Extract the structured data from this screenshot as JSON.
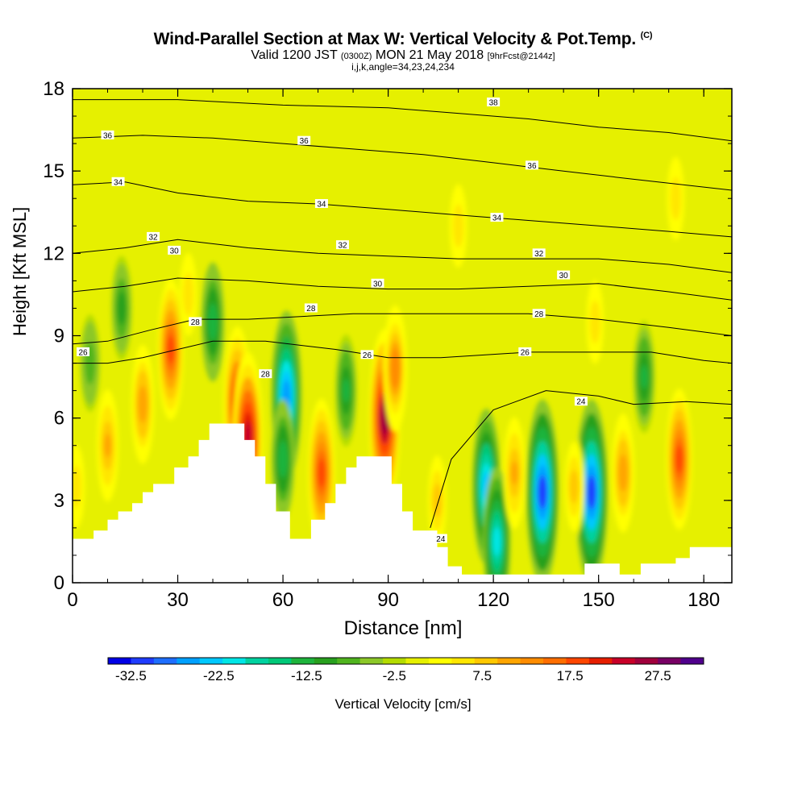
{
  "header": {
    "title_main": "Wind-Parallel Section at Max W: Vertical Velocity & Pot.Temp.",
    "title_mark": "(C)",
    "valid_prefix": "Valid 1200 JST",
    "valid_zulu": "(0300Z)",
    "valid_date": "MON 21 May 2018",
    "forecast_tag": "[9hrFcst@2144z]",
    "indices": "i,j,k,angle=34,23,24,234"
  },
  "colorbar": {
    "label": "Vertical Velocity [cm/s]",
    "tick_labels": [
      "-32.5",
      "-22.5",
      "-12.5",
      "-2.5",
      "7.5",
      "17.5",
      "27.5"
    ],
    "colors": [
      "#0000e6",
      "#1f3cff",
      "#1e6eff",
      "#00a0ff",
      "#00c8ff",
      "#00e6e6",
      "#00d2a0",
      "#00c878",
      "#1eb43c",
      "#28a01e",
      "#50b41e",
      "#8cc828",
      "#b4dc00",
      "#e6f000",
      "#ffff00",
      "#ffe600",
      "#ffc800",
      "#ffa500",
      "#ff8c00",
      "#ff6e00",
      "#ff4600",
      "#e61e00",
      "#c80028",
      "#a0003c",
      "#780064",
      "#50008c"
    ]
  },
  "chart_data": {
    "type": "heatmap",
    "title": "Wind-Parallel Section at Max W: Vertical Velocity & Pot.Temp.",
    "xlabel": "Distance [nm]",
    "ylabel": "Height [Kft MSL]",
    "xlim": [
      0,
      188
    ],
    "ylim": [
      0,
      18
    ],
    "x_ticks": [
      0,
      30,
      60,
      90,
      120,
      150,
      180
    ],
    "y_ticks": [
      0,
      3,
      6,
      9,
      12,
      15,
      18
    ],
    "color_variable": "Vertical Velocity [cm/s]",
    "color_range": [
      -32.5,
      32.5
    ],
    "contour_variable": "Potential Temperature",
    "terrain": [
      [
        0,
        1.6
      ],
      [
        6,
        1.6
      ],
      [
        6,
        1.9
      ],
      [
        10,
        1.9
      ],
      [
        10,
        2.3
      ],
      [
        13,
        2.3
      ],
      [
        13,
        2.6
      ],
      [
        17,
        2.6
      ],
      [
        17,
        2.9
      ],
      [
        20,
        2.9
      ],
      [
        20,
        3.3
      ],
      [
        23,
        3.3
      ],
      [
        23,
        3.6
      ],
      [
        29,
        3.6
      ],
      [
        29,
        4.2
      ],
      [
        33,
        4.2
      ],
      [
        33,
        4.6
      ],
      [
        36,
        4.6
      ],
      [
        36,
        5.2
      ],
      [
        39,
        5.2
      ],
      [
        39,
        5.8
      ],
      [
        49,
        5.8
      ],
      [
        49,
        5.2
      ],
      [
        52,
        5.2
      ],
      [
        52,
        4.6
      ],
      [
        55,
        4.6
      ],
      [
        55,
        3.6
      ],
      [
        58,
        3.6
      ],
      [
        58,
        2.6
      ],
      [
        62,
        2.6
      ],
      [
        62,
        1.6
      ],
      [
        68,
        1.6
      ],
      [
        68,
        2.3
      ],
      [
        72,
        2.3
      ],
      [
        72,
        2.9
      ],
      [
        75,
        2.9
      ],
      [
        75,
        3.6
      ],
      [
        78,
        3.6
      ],
      [
        78,
        4.2
      ],
      [
        81,
        4.2
      ],
      [
        81,
        4.6
      ],
      [
        91,
        4.6
      ],
      [
        91,
        3.6
      ],
      [
        94,
        3.6
      ],
      [
        94,
        2.6
      ],
      [
        97,
        2.6
      ],
      [
        97,
        1.9
      ],
      [
        104,
        1.9
      ],
      [
        104,
        1.3
      ],
      [
        107,
        1.3
      ],
      [
        107,
        0.6
      ],
      [
        111,
        0.6
      ],
      [
        111,
        0.3
      ],
      [
        146,
        0.3
      ],
      [
        146,
        0.7
      ],
      [
        156,
        0.7
      ],
      [
        156,
        0.3
      ],
      [
        162,
        0.3
      ],
      [
        162,
        0.7
      ],
      [
        172,
        0.7
      ],
      [
        172,
        0.9
      ],
      [
        176,
        0.9
      ],
      [
        176,
        1.3
      ],
      [
        188,
        1.3
      ]
    ],
    "updrafts": [
      {
        "x": 1,
        "z": 3.5,
        "w": 8
      },
      {
        "x": 10,
        "z": 5,
        "w": 12
      },
      {
        "x": 20,
        "z": 6.5,
        "w": 14
      },
      {
        "x": 28,
        "z": 8.5,
        "w": 20
      },
      {
        "x": 33,
        "z": 10.5,
        "w": 8
      },
      {
        "x": 47,
        "z": 6.5,
        "w": 24
      },
      {
        "x": 50,
        "z": 5.3,
        "w": 28
      },
      {
        "x": 71,
        "z": 4,
        "w": 22
      },
      {
        "x": 89,
        "z": 6,
        "w": 30
      },
      {
        "x": 92,
        "z": 7.8,
        "w": 16
      },
      {
        "x": 104,
        "z": 3,
        "w": 10
      },
      {
        "x": 126,
        "z": 4,
        "w": 12
      },
      {
        "x": 143,
        "z": 3.5,
        "w": 10
      },
      {
        "x": 149,
        "z": 9.5,
        "w": 8
      },
      {
        "x": 157,
        "z": 4,
        "w": 14
      },
      {
        "x": 173,
        "z": 4.5,
        "w": 20
      },
      {
        "x": 110,
        "z": 13,
        "w": 8
      },
      {
        "x": 172,
        "z": 14,
        "w": 8
      }
    ],
    "downdrafts": [
      {
        "x": 14,
        "z": 10,
        "w": -10
      },
      {
        "x": 40,
        "z": 9.5,
        "w": -14
      },
      {
        "x": 61,
        "z": 6.8,
        "w": -28
      },
      {
        "x": 60,
        "z": 4.5,
        "w": -14
      },
      {
        "x": 78,
        "z": 7,
        "w": -12
      },
      {
        "x": 118,
        "z": 3.5,
        "w": -24
      },
      {
        "x": 121,
        "z": 1.5,
        "w": -22
      },
      {
        "x": 134,
        "z": 3.3,
        "w": -32
      },
      {
        "x": 148,
        "z": 3.3,
        "w": -32
      },
      {
        "x": 163,
        "z": 7.5,
        "w": -12
      },
      {
        "x": 5,
        "z": 8,
        "w": -8
      }
    ],
    "contours": [
      {
        "label": "24",
        "points": [
          [
            102,
            2
          ],
          [
            108,
            4.5
          ],
          [
            120,
            6.3
          ],
          [
            135,
            7
          ],
          [
            150,
            6.8
          ],
          [
            160,
            6.5
          ],
          [
            175,
            6.6
          ],
          [
            188,
            6.5
          ]
        ]
      },
      {
        "label": "26",
        "points": [
          [
            0,
            8
          ],
          [
            10,
            8
          ],
          [
            20,
            8.2
          ],
          [
            30,
            8.5
          ],
          [
            40,
            8.8
          ],
          [
            55,
            8.8
          ],
          [
            75,
            8.5
          ],
          [
            90,
            8.2
          ],
          [
            105,
            8.2
          ],
          [
            130,
            8.4
          ],
          [
            150,
            8.4
          ],
          [
            165,
            8.4
          ],
          [
            180,
            8.1
          ],
          [
            188,
            8
          ]
        ]
      },
      {
        "label": "28",
        "points": [
          [
            0,
            8.7
          ],
          [
            10,
            8.8
          ],
          [
            22,
            9.2
          ],
          [
            35,
            9.6
          ],
          [
            50,
            9.6
          ],
          [
            65,
            9.7
          ],
          [
            80,
            9.8
          ],
          [
            100,
            9.8
          ],
          [
            130,
            9.8
          ],
          [
            150,
            9.6
          ],
          [
            170,
            9.3
          ],
          [
            188,
            9
          ]
        ]
      },
      {
        "label": "30",
        "points": [
          [
            0,
            10.6
          ],
          [
            15,
            10.8
          ],
          [
            30,
            11.1
          ],
          [
            50,
            11
          ],
          [
            70,
            10.8
          ],
          [
            90,
            10.7
          ],
          [
            110,
            10.7
          ],
          [
            130,
            10.8
          ],
          [
            150,
            10.9
          ],
          [
            170,
            10.6
          ],
          [
            188,
            10.3
          ]
        ]
      },
      {
        "label": "32",
        "points": [
          [
            0,
            12
          ],
          [
            15,
            12.2
          ],
          [
            30,
            12.5
          ],
          [
            50,
            12.2
          ],
          [
            70,
            12
          ],
          [
            90,
            11.9
          ],
          [
            110,
            11.8
          ],
          [
            130,
            11.8
          ],
          [
            150,
            11.8
          ],
          [
            170,
            11.6
          ],
          [
            188,
            11.3
          ]
        ]
      },
      {
        "label": "34",
        "points": [
          [
            0,
            14.5
          ],
          [
            15,
            14.6
          ],
          [
            30,
            14.2
          ],
          [
            50,
            13.9
          ],
          [
            70,
            13.8
          ],
          [
            90,
            13.6
          ],
          [
            110,
            13.4
          ],
          [
            130,
            13.2
          ],
          [
            150,
            13
          ],
          [
            170,
            12.8
          ],
          [
            188,
            12.6
          ]
        ]
      },
      {
        "label": "36",
        "points": [
          [
            0,
            16.2
          ],
          [
            20,
            16.3
          ],
          [
            40,
            16.2
          ],
          [
            60,
            16
          ],
          [
            80,
            15.8
          ],
          [
            100,
            15.6
          ],
          [
            120,
            15.3
          ],
          [
            140,
            15
          ],
          [
            160,
            14.7
          ],
          [
            188,
            14.3
          ]
        ]
      },
      {
        "label": "38",
        "points": [
          [
            0,
            17.6
          ],
          [
            30,
            17.6
          ],
          [
            60,
            17.4
          ],
          [
            90,
            17.3
          ],
          [
            110,
            17.1
          ],
          [
            130,
            16.9
          ],
          [
            150,
            16.6
          ],
          [
            170,
            16.4
          ],
          [
            188,
            16.1
          ]
        ]
      }
    ],
    "contour_labels": [
      {
        "text": "24",
        "x": 145,
        "z": 6.6
      },
      {
        "text": "24",
        "x": 105,
        "z": 1.6
      },
      {
        "text": "26",
        "x": 3,
        "z": 8.4
      },
      {
        "text": "26",
        "x": 129,
        "z": 8.4
      },
      {
        "text": "26",
        "x": 84,
        "z": 8.3
      },
      {
        "text": "28",
        "x": 35,
        "z": 9.5
      },
      {
        "text": "28",
        "x": 55,
        "z": 7.6
      },
      {
        "text": "28",
        "x": 68,
        "z": 10
      },
      {
        "text": "28",
        "x": 133,
        "z": 9.8
      },
      {
        "text": "30",
        "x": 29,
        "z": 12.1
      },
      {
        "text": "30",
        "x": 87,
        "z": 10.9
      },
      {
        "text": "30",
        "x": 140,
        "z": 11.2
      },
      {
        "text": "32",
        "x": 23,
        "z": 12.6
      },
      {
        "text": "32",
        "x": 77,
        "z": 12.3
      },
      {
        "text": "32",
        "x": 133,
        "z": 12
      },
      {
        "text": "34",
        "x": 13,
        "z": 14.6
      },
      {
        "text": "34",
        "x": 71,
        "z": 13.8
      },
      {
        "text": "34",
        "x": 121,
        "z": 13.3
      },
      {
        "text": "36",
        "x": 10,
        "z": 16.3
      },
      {
        "text": "36",
        "x": 66,
        "z": 16.1
      },
      {
        "text": "36",
        "x": 131,
        "z": 15.2
      },
      {
        "text": "38",
        "x": 120,
        "z": 17.5
      }
    ]
  }
}
